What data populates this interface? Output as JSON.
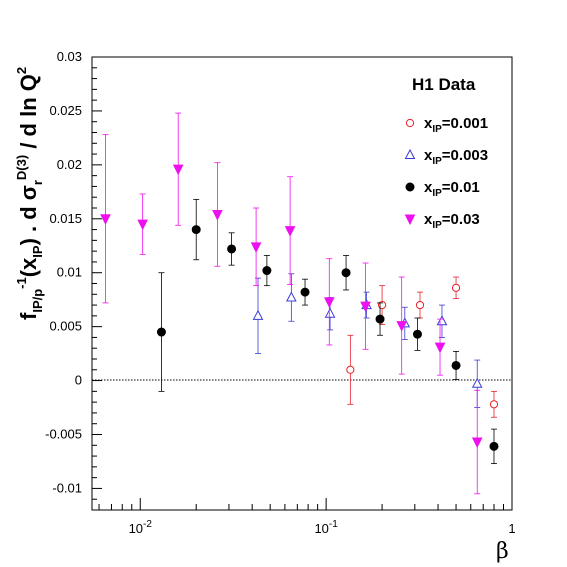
{
  "chart_data": {
    "type": "scatter",
    "title": "",
    "xlabel": "β",
    "ylabel": {
      "main": "f",
      "main_sub": "IP/p",
      "main_sup": "-1",
      "paren_open": "(x",
      "paren_sub": "IP",
      "paren_close": ") . d σ",
      "sigma_sub": "r",
      "sigma_sup": "D(3)",
      "rest": " / d ln Q",
      "rest_sup": "2"
    },
    "x_scale": "log",
    "xlim": [
      0.0055,
      1.0
    ],
    "ylim": [
      -0.012,
      0.03
    ],
    "x_ticks": [
      {
        "label": "10",
        "sup": "-2",
        "value": 0.01
      },
      {
        "label": "10",
        "sup": "-1",
        "value": 0.1
      },
      {
        "label": "1",
        "sup": "",
        "value": 1.0
      }
    ],
    "y_ticks": [
      {
        "label": "-0.01",
        "value": -0.01
      },
      {
        "label": "-0.005",
        "value": -0.005
      },
      {
        "label": "0",
        "value": 0
      },
      {
        "label": "0.005",
        "value": 0.005
      },
      {
        "label": "0.01",
        "value": 0.01
      },
      {
        "label": "0.015",
        "value": 0.015
      },
      {
        "label": "0.02",
        "value": 0.02
      },
      {
        "label": "0.025",
        "value": 0.025
      },
      {
        "label": "0.03",
        "value": 0.03
      }
    ],
    "zero_line": true,
    "legend": {
      "title": "H1 Data",
      "placement": "top-right"
    },
    "series": [
      {
        "name_main": "x",
        "name_sub": "IP",
        "name_rest": "=0.001",
        "marker": "open-circle",
        "color": "#e8212a",
        "points": [
          {
            "x": 0.135,
            "y": 0.001,
            "ey": 0.0032
          },
          {
            "x": 0.2,
            "y": 0.007,
            "ey": 0.0018
          },
          {
            "x": 0.32,
            "y": 0.007,
            "ey": 0.0012
          },
          {
            "x": 0.5,
            "y": 0.0086,
            "ey": 0.001
          },
          {
            "x": 0.8,
            "y": -0.0022,
            "ey": 0.0012
          }
        ]
      },
      {
        "name_main": "x",
        "name_sub": "IP",
        "name_rest": "=0.003",
        "marker": "open-triangle",
        "color": "#3b3bd6",
        "points": [
          {
            "x": 0.043,
            "y": 0.006,
            "ey": 0.0035
          },
          {
            "x": 0.065,
            "y": 0.0077,
            "ey": 0.0022
          },
          {
            "x": 0.105,
            "y": 0.0062,
            "ey": 0.0015
          },
          {
            "x": 0.165,
            "y": 0.007,
            "ey": 0.0012
          },
          {
            "x": 0.265,
            "y": 0.0053,
            "ey": 0.0015
          },
          {
            "x": 0.42,
            "y": 0.0055,
            "ey": 0.0015
          },
          {
            "x": 0.65,
            "y": -0.0003,
            "ey": 0.0022
          }
        ]
      },
      {
        "name_main": "x",
        "name_sub": "IP",
        "name_rest": "=0.01",
        "marker": "filled-circle",
        "color": "#000000",
        "points": [
          {
            "x": 0.013,
            "y": 0.0045,
            "ey": 0.0055
          },
          {
            "x": 0.02,
            "y": 0.014,
            "ey": 0.0028
          },
          {
            "x": 0.031,
            "y": 0.0122,
            "ey": 0.0015
          },
          {
            "x": 0.048,
            "y": 0.0102,
            "ey": 0.0014
          },
          {
            "x": 0.077,
            "y": 0.0082,
            "ey": 0.0012
          },
          {
            "x": 0.128,
            "y": 0.01,
            "ey": 0.0016
          },
          {
            "x": 0.195,
            "y": 0.0057,
            "ey": 0.0015
          },
          {
            "x": 0.31,
            "y": 0.0043,
            "ey": 0.0015
          },
          {
            "x": 0.5,
            "y": 0.0014,
            "ey": 0.0013
          },
          {
            "x": 0.8,
            "y": -0.0061,
            "ey": 0.0016
          }
        ]
      },
      {
        "name_main": "x",
        "name_sub": "IP",
        "name_rest": "=0.03",
        "marker": "filled-triangle-down",
        "color": "#ee10ee",
        "points": [
          {
            "x": 0.0065,
            "y": 0.015,
            "ey": 0.0078
          },
          {
            "x": 0.0103,
            "y": 0.0145,
            "ey": 0.0028
          },
          {
            "x": 0.016,
            "y": 0.0196,
            "ey": 0.0052
          },
          {
            "x": 0.026,
            "y": 0.0154,
            "ey": 0.0048
          },
          {
            "x": 0.042,
            "y": 0.0124,
            "ey": 0.0036
          },
          {
            "x": 0.064,
            "y": 0.0139,
            "ey": 0.005
          },
          {
            "x": 0.104,
            "y": 0.0073,
            "ey": 0.004
          },
          {
            "x": 0.163,
            "y": 0.0069,
            "ey": 0.004
          },
          {
            "x": 0.255,
            "y": 0.0051,
            "ey": 0.0045
          },
          {
            "x": 0.41,
            "y": 0.0031,
            "ey": 0.0026
          },
          {
            "x": 0.65,
            "y": -0.0057,
            "ey": 0.0048
          }
        ]
      }
    ]
  }
}
